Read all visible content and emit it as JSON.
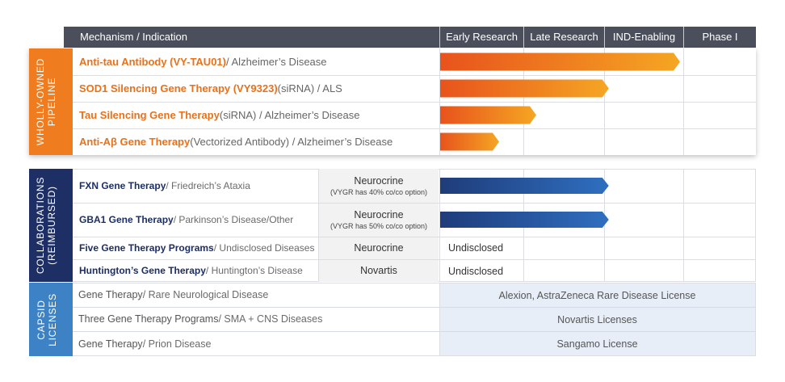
{
  "header": {
    "mechanism": "Mechanism / Indication",
    "stages": [
      "Early Research",
      "Late Research",
      "IND-Enabling",
      "Phase I"
    ]
  },
  "sections": {
    "wholly_owned": "WHOLLY-OWNED\nPIPELINE",
    "collaborations": "COLLABORATIONS\n(REIMBURSED)",
    "capsid": "CAPSID\nLICENSES"
  },
  "wholly_owned": [
    {
      "name": "Anti-tau Antibody (VY-TAU01)",
      "detail": " / Alzheimer’s Disease",
      "progress": 3.0
    },
    {
      "name": "SOD1 Silencing Gene Therapy (VY9323)",
      "detail": " (siRNA) / ALS",
      "progress": 2.1
    },
    {
      "name": "Tau Silencing Gene Therapy",
      "detail": " (siRNA) / Alzheimer’s Disease",
      "progress": 1.2
    },
    {
      "name": "Anti-Aβ Gene Therapy",
      "detail": " (Vectorized Antibody) / Alzheimer’s Disease",
      "progress": 0.75
    }
  ],
  "collaborations": [
    {
      "name": "FXN Gene Therapy",
      "detail": " / Friedreich’s Ataxia",
      "partner": "Neurocrine",
      "note": "(VYGR has 40% co/co option)",
      "progress": 2.1
    },
    {
      "name": "GBA1 Gene Therapy",
      "detail": " / Parkinson’s Disease/Other",
      "partner": "Neurocrine",
      "note": "(VYGR has 50% co/co option)",
      "progress": 2.1
    },
    {
      "name": "Five Gene Therapy Programs",
      "detail": " / Undisclosed Diseases",
      "partner": "Neurocrine",
      "status": "Undisclosed"
    },
    {
      "name": "Huntington’s Gene Therapy",
      "detail": " / Huntington’s Disease",
      "partner": "Novartis",
      "status": "Undisclosed"
    }
  ],
  "capsid": [
    {
      "name": "Gene Therapy",
      "detail": " / Rare Neurological Disease",
      "license": "Alexion, AstraZeneca Rare Disease License"
    },
    {
      "name": "Three Gene Therapy Programs",
      "detail": " / SMA + CNS Diseases",
      "license": "Novartis Licenses"
    },
    {
      "name": "Gene Therapy",
      "detail": " / Prion Disease",
      "license": "Sangamo License"
    }
  ],
  "colors": {
    "header": "#4b4f5b",
    "wholly_owned": "#ef7d1f",
    "collaborations": "#1e2f66",
    "capsid": "#3c82c4",
    "orange_bar_start": "#e8531c",
    "orange_bar_end": "#f5a623",
    "blue_bar_start": "#1f3c7a",
    "blue_bar_end": "#2f6fc0"
  }
}
